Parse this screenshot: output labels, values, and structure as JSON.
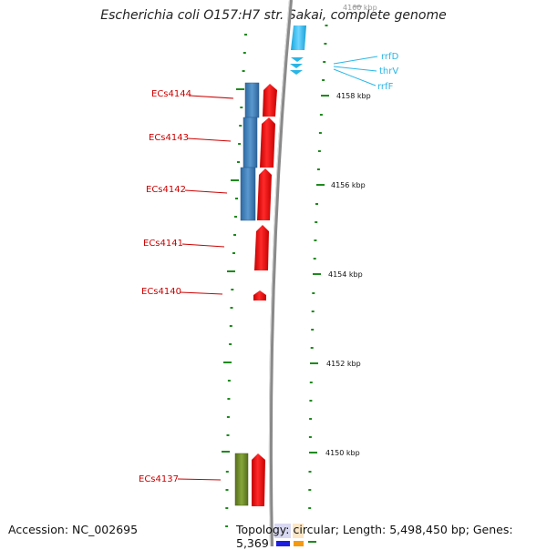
{
  "title": "Escherichia coli O157:H7 str. Sakai, complete genome",
  "footer": {
    "accession": "Accession: NC_002695",
    "summary": "Topology: circular; Length: 5,498,450 bp; Genes: 5,369"
  },
  "ticks": [
    "4160 kbp",
    "4158 kbp",
    "4156 kbp",
    "4154 kbp",
    "4152 kbp",
    "4150 kbp"
  ],
  "genes": [
    "ECs4144",
    "ECs4143",
    "ECs4142",
    "ECs4141",
    "ECs4140",
    "ECs4137"
  ],
  "rna": [
    "rrfD",
    "thrV",
    "rrfF"
  ],
  "colors": {
    "cds": "#ee1111",
    "blue_feature": "#4a86c0",
    "green_feature": "#6e8c2a",
    "rna": "#29b6e6",
    "backbone": "#8a8a8a",
    "dots": "#1e8a1e",
    "gene_label": "#cc0000"
  }
}
